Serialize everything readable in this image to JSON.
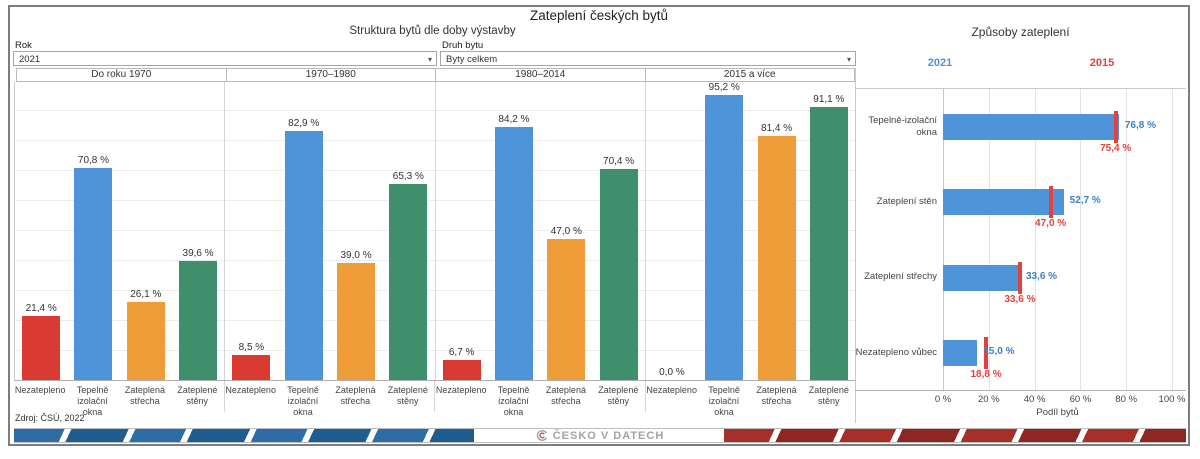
{
  "window": {
    "title": "Zateplení českých bytů"
  },
  "filters": {
    "rok": {
      "label": "Rok",
      "value": "2021"
    },
    "druh_bytu": {
      "label": "Druh bytu",
      "value": "Byty celkem"
    }
  },
  "source": "Zdroj: ČSÚ, 2022",
  "footer": {
    "logo_text": "ČESKO V DATECH"
  },
  "chart_data": [
    {
      "type": "bar",
      "title": "Struktura bytů dle doby výstavby",
      "panels": [
        "Do roku 1970",
        "1970–1980",
        "1980–2014",
        "2015 a více"
      ],
      "categories": [
        [
          "Nezatepleno"
        ],
        [
          "Tepelně",
          "izolační okna"
        ],
        [
          "Zateplená",
          "střecha"
        ],
        [
          "Zateplené",
          "stěny"
        ]
      ],
      "bar_colors": [
        "#d93b32",
        "#4f93d8",
        "#ef9d38",
        "#3f8f6c"
      ],
      "series": [
        {
          "panel": "Do roku 1970",
          "values": [
            21.4,
            70.8,
            26.1,
            39.6
          ],
          "labels": [
            "21,4 %",
            "70,8 %",
            "26,1 %",
            "39,6 %"
          ]
        },
        {
          "panel": "1970–1980",
          "values": [
            8.5,
            82.9,
            39.0,
            65.3
          ],
          "labels": [
            "8,5 %",
            "82,9 %",
            "39,0 %",
            "65,3 %"
          ]
        },
        {
          "panel": "1980–2014",
          "values": [
            6.7,
            84.2,
            47.0,
            70.4
          ],
          "labels": [
            "6,7 %",
            "84,2 %",
            "47,0 %",
            "70,4 %"
          ]
        },
        {
          "panel": "2015 a více",
          "values": [
            0.0,
            95.2,
            81.4,
            91.1
          ],
          "labels": [
            "0,0 %",
            "95,2 %",
            "81,4 %",
            "91,1 %"
          ]
        }
      ],
      "ylim": [
        0,
        100
      ],
      "grid": "horizontal every 10%"
    },
    {
      "type": "bar-horizontal",
      "title": "Způsoby zateplení",
      "legend": [
        {
          "label": "2021",
          "color": "#4f93d8"
        },
        {
          "label": "2015",
          "color": "#e2423b"
        }
      ],
      "categories": [
        "Tepelně-izolační okna",
        "Zateplení stěn",
        "Zateplení střechy",
        "Nezatepleno vůbec"
      ],
      "series": [
        {
          "name": "2021",
          "values": [
            76.8,
            52.7,
            33.6,
            15.0
          ],
          "labels": [
            "76,8 %",
            "52,7 %",
            "33,6 %",
            "15,0 %"
          ]
        },
        {
          "name": "2015",
          "values": [
            75.4,
            47.0,
            33.6,
            18.8
          ],
          "labels": [
            "75,4 %",
            "47,0 %",
            "33,6 %",
            "18,8 %"
          ]
        }
      ],
      "xlabel": "Podíl bytů",
      "x_ticks": [
        "0 %",
        "20 %",
        "40 %",
        "60 %",
        "80 %",
        "100 %"
      ],
      "xlim": [
        0,
        100
      ],
      "legend_position": "top"
    }
  ]
}
